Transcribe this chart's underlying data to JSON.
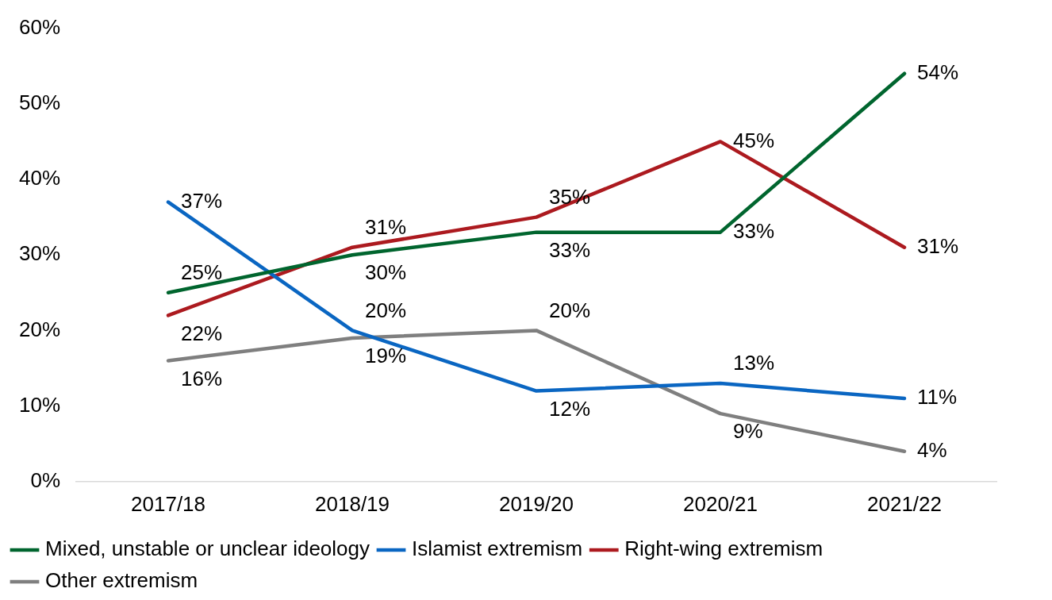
{
  "chart_data": {
    "type": "line",
    "categories": [
      "2017/18",
      "2018/19",
      "2019/20",
      "2020/21",
      "2021/22"
    ],
    "series": [
      {
        "name": "Mixed, unstable or unclear ideology",
        "color": "#00652e",
        "values": [
          25,
          30,
          33,
          33,
          54
        ],
        "value_labels": [
          "25%",
          "30%",
          "33%",
          "33%",
          "54%"
        ]
      },
      {
        "name": "Islamist extremism",
        "color": "#0a66c2",
        "values": [
          37,
          20,
          12,
          13,
          11
        ],
        "value_labels": [
          "37%",
          "20%",
          "12%",
          "13%",
          "11%"
        ]
      },
      {
        "name": "Right-wing extremism",
        "color": "#ac1a1f",
        "values": [
          22,
          31,
          35,
          45,
          31
        ],
        "value_labels": [
          "22%",
          "31%",
          "35%",
          "45%",
          "31%"
        ]
      },
      {
        "name": "Other extremism",
        "color": "#7f7f7f",
        "values": [
          16,
          19,
          20,
          9,
          4
        ],
        "value_labels": [
          "16%",
          "19%",
          "20%",
          "9%",
          "4%"
        ]
      }
    ],
    "ylim": [
      0,
      60
    ],
    "yticks": [
      {
        "value": 0,
        "label": "0%"
      },
      {
        "value": 10,
        "label": "10%"
      },
      {
        "value": 20,
        "label": "20%"
      },
      {
        "value": 30,
        "label": "30%"
      },
      {
        "value": 40,
        "label": "40%"
      },
      {
        "value": 50,
        "label": "50%"
      },
      {
        "value": 60,
        "label": "60%"
      }
    ],
    "legend": "bottom",
    "grid": false,
    "marker": "none",
    "line_style": "solid"
  }
}
